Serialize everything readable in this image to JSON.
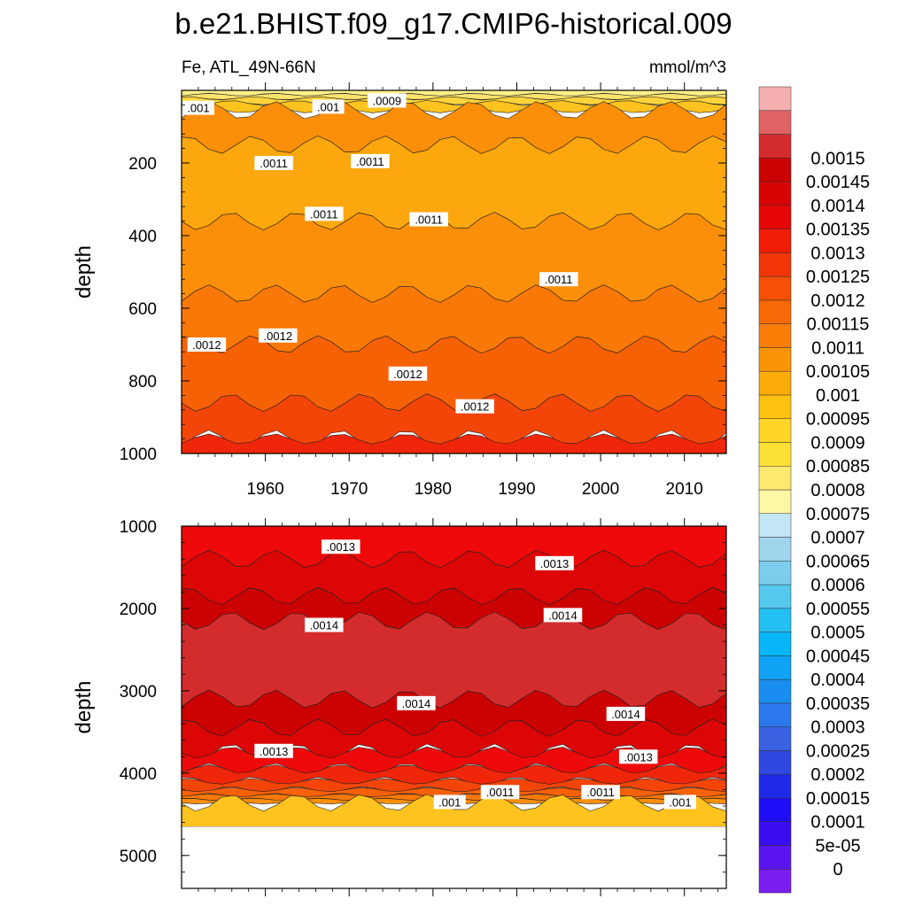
{
  "chart_data": {
    "type": "contour",
    "title": "b.e21.BHIST.f09_g17.CMIP6-historical.009",
    "variable_label": "Fe, ATL_49N-66N",
    "units_label": "mmol/m^3",
    "xrange": [
      1950,
      2015
    ],
    "x_ticks": [
      1960,
      1970,
      1980,
      1990,
      2000,
      2010
    ],
    "x_tick_labels": [
      "1960",
      "1970",
      "1980",
      "1990",
      "2000",
      "2010"
    ],
    "panels": [
      {
        "name": "upper",
        "ylabel": "depth",
        "yrange": [
          0,
          1000
        ],
        "y_ticks": [
          200,
          400,
          600,
          800,
          1000
        ],
        "y_tick_labels": [
          "200",
          "400",
          "600",
          "800",
          "1000"
        ],
        "bands": [
          {
            "level": 0.0008,
            "color": "#fef08a",
            "y0": 0,
            "y1": 12
          },
          {
            "level": 0.00085,
            "color": "#fde36b",
            "y0": 12,
            "y1": 22
          },
          {
            "level": 0.0009,
            "color": "#fdd43c",
            "y0": 22,
            "y1": 35
          },
          {
            "level": 0.00095,
            "color": "#fec31e",
            "y0": 35,
            "y1": 55
          },
          {
            "level": 0.00105,
            "color": "#fb8f0a",
            "y0": 55,
            "y1": 150
          },
          {
            "level": 0.001,
            "color": "#fca70d",
            "y0": 150,
            "y1": 360
          },
          {
            "level": 0.00105,
            "color": "#fb8f0a",
            "y0": 360,
            "y1": 560
          },
          {
            "level": 0.0011,
            "color": "#f97808",
            "y0": 560,
            "y1": 700
          },
          {
            "level": 0.00115,
            "color": "#f76106",
            "y0": 700,
            "y1": 860
          },
          {
            "level": 0.0012,
            "color": "#f44508",
            "y0": 860,
            "y1": 960
          },
          {
            "level": 0.00125,
            "color": "#f0260a",
            "y0": 960,
            "y1": 1000
          }
        ],
        "contour_labels": [
          {
            "text": ".001",
            "x": 1952.0,
            "y": 48
          },
          {
            "text": ".001",
            "x": 1967.5,
            "y": 45
          },
          {
            "text": ".0009",
            "x": 1974.5,
            "y": 28
          },
          {
            "text": ".0011",
            "x": 1961.0,
            "y": 200
          },
          {
            "text": ".0011",
            "x": 1972.5,
            "y": 195
          },
          {
            "text": ".0011",
            "x": 1967.0,
            "y": 340
          },
          {
            "text": ".0011",
            "x": 1979.5,
            "y": 355
          },
          {
            "text": ".0011",
            "x": 1995.0,
            "y": 520
          },
          {
            "text": ".0012",
            "x": 1953.0,
            "y": 700
          },
          {
            "text": ".0012",
            "x": 1961.5,
            "y": 675
          },
          {
            "text": ".0012",
            "x": 1977.0,
            "y": 780
          },
          {
            "text": ".0012",
            "x": 1985.0,
            "y": 870
          }
        ]
      },
      {
        "name": "lower",
        "ylabel": "depth",
        "yrange": [
          1000,
          5400
        ],
        "y_ticks": [
          1000,
          2000,
          3000,
          4000,
          5000
        ],
        "y_tick_labels": [
          "1000",
          "2000",
          "3000",
          "4000",
          "5000"
        ],
        "bottom_of_data": 4650,
        "bands": [
          {
            "level": 0.0013,
            "color": "#ee0a0a",
            "y0": 1000,
            "y1": 1400
          },
          {
            "level": 0.00135,
            "color": "#dc0606",
            "y0": 1400,
            "y1": 1850
          },
          {
            "level": 0.0014,
            "color": "#cc0202",
            "y0": 1850,
            "y1": 2150
          },
          {
            "level": 0.00145,
            "color": "#d42c2c",
            "y0": 2150,
            "y1": 3100
          },
          {
            "level": 0.0014,
            "color": "#cc0202",
            "y0": 3100,
            "y1": 3450
          },
          {
            "level": 0.00135,
            "color": "#dc0606",
            "y0": 3450,
            "y1": 3750
          },
          {
            "level": 0.0013,
            "color": "#ee0a0a",
            "y0": 3750,
            "y1": 3950
          },
          {
            "level": 0.00125,
            "color": "#f0260a",
            "y0": 3950,
            "y1": 4100
          },
          {
            "level": 0.0012,
            "color": "#f44508",
            "y0": 4100,
            "y1": 4200
          },
          {
            "level": 0.00115,
            "color": "#f76106",
            "y0": 4200,
            "y1": 4270
          },
          {
            "level": 0.0011,
            "color": "#f97808",
            "y0": 4270,
            "y1": 4320
          },
          {
            "level": 0.00105,
            "color": "#fb8f0a",
            "y0": 4320,
            "y1": 4360
          },
          {
            "level": 0.001,
            "color": "#fec31e",
            "y0": 4360,
            "y1": 4650
          }
        ],
        "contour_labels": [
          {
            "text": ".0013",
            "x": 1969.0,
            "y": 1250
          },
          {
            "text": ".0013",
            "x": 1994.5,
            "y": 1450
          },
          {
            "text": ".0014",
            "x": 1967.0,
            "y": 2200
          },
          {
            "text": ".0014",
            "x": 1995.5,
            "y": 2080
          },
          {
            "text": ".0014",
            "x": 1978.0,
            "y": 3150
          },
          {
            "text": ".0014",
            "x": 2003.0,
            "y": 3280
          },
          {
            "text": ".0013",
            "x": 1961.0,
            "y": 3730
          },
          {
            "text": ".0013",
            "x": 2004.5,
            "y": 3800
          },
          {
            "text": ".001",
            "x": 1982.0,
            "y": 4350
          },
          {
            "text": ".0011",
            "x": 1988.0,
            "y": 4230
          },
          {
            "text": ".0011",
            "x": 2000.0,
            "y": 4230
          },
          {
            "text": ".001",
            "x": 2009.5,
            "y": 4350
          }
        ]
      }
    ],
    "colorbar": {
      "colors": [
        "#7b1df0",
        "#5a14f0",
        "#3a0cf0",
        "#1e0ef8",
        "#1f2ae8",
        "#2f48e0",
        "#3a62e0",
        "#2a78ec",
        "#1a8ef0",
        "#10a2f5",
        "#06b6f8",
        "#25c0f2",
        "#55c8ee",
        "#7ccdee",
        "#a0d5ee",
        "#c3e6f5",
        "#fef7a6",
        "#fee970",
        "#fde035",
        "#fed426",
        "#fec10f",
        "#fcac08",
        "#fb9406",
        "#f97d06",
        "#f76806",
        "#f55006",
        "#f33608",
        "#f01c06",
        "#e60606",
        "#d80404",
        "#cc0202",
        "#d42c2c",
        "#e06262",
        "#f6b0b0"
      ],
      "labels": [
        "0",
        "5e-05",
        "0.0001",
        "0.00015",
        "0.0002",
        "0.00025",
        "0.0003",
        "0.00035",
        "0.0004",
        "0.00045",
        "0.0005",
        "0.00055",
        "0.0006",
        "0.00065",
        "0.0007",
        "0.00075",
        "0.0008",
        "0.00085",
        "0.0009",
        "0.00095",
        "0.001",
        "0.00105",
        "0.0011",
        "0.00115",
        "0.0012",
        "0.00125",
        "0.0013",
        "0.00135",
        "0.0014",
        "0.00145",
        "0.0015"
      ]
    }
  }
}
